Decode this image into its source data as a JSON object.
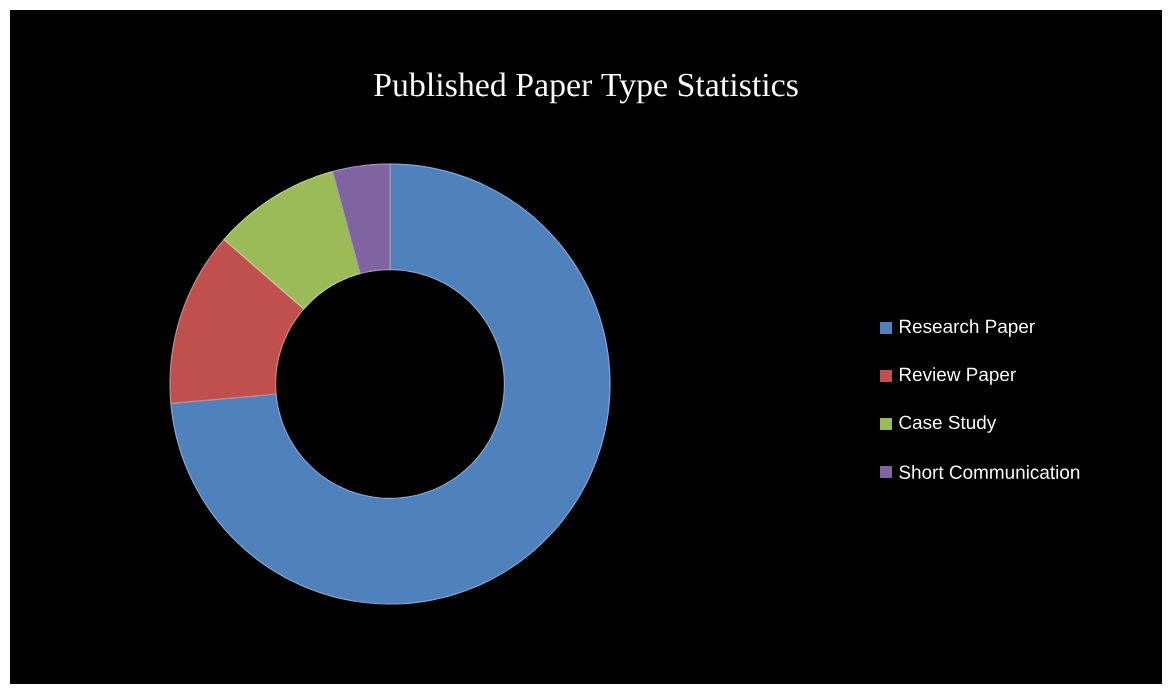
{
  "chart_data": {
    "type": "donut",
    "title": "Published Paper Type Statistics",
    "categories": [
      "Research Paper",
      "Review Paper",
      "Case Study",
      "Short Communication"
    ],
    "values": [
      73.6,
      12.8,
      9.4,
      4.2
    ],
    "colors": [
      "#4f81bd",
      "#c0504d",
      "#9bbb59",
      "#8064a2"
    ],
    "legend": "right"
  }
}
